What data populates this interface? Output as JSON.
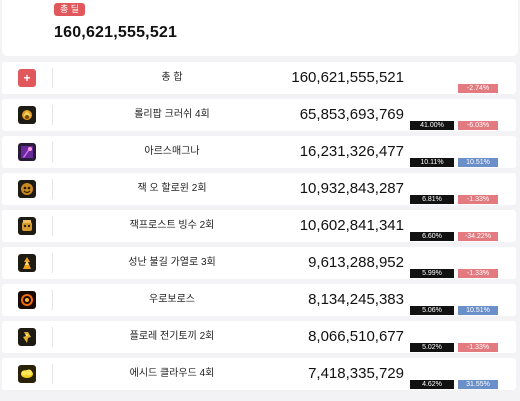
{
  "summary": {
    "badge": "총 딜",
    "value": "160,621,555,521"
  },
  "colors": {
    "accent": "#e0585b",
    "negative": "#e27a7f",
    "positive": "#6b8fc8"
  },
  "rows": [
    {
      "icon": "plus-icon",
      "name": "총 합",
      "amount": "160,621,555,521",
      "share": "",
      "delta": "-2.74%",
      "delta_sign": "neg"
    },
    {
      "icon": "skill-icon",
      "name": "롤리팝 크러쉬 4회",
      "amount": "65,853,693,769",
      "share": "41.00%",
      "delta": "-6.03%",
      "delta_sign": "neg"
    },
    {
      "icon": "skill-icon",
      "name": "아르스매그나",
      "amount": "16,231,326,477",
      "share": "10.11%",
      "delta": "10.51%",
      "delta_sign": "pos"
    },
    {
      "icon": "skill-icon",
      "name": "잭 오 할로윈 2회",
      "amount": "10,932,843,287",
      "share": "6.81%",
      "delta": "-1.33%",
      "delta_sign": "neg"
    },
    {
      "icon": "skill-icon",
      "name": "잭프로스트 빙수 2회",
      "amount": "10,602,841,341",
      "share": "6.60%",
      "delta": "-34.22%",
      "delta_sign": "neg"
    },
    {
      "icon": "skill-icon",
      "name": "성난 불길 가열로 3회",
      "amount": "9,613,288,952",
      "share": "5.99%",
      "delta": "-1.33%",
      "delta_sign": "neg"
    },
    {
      "icon": "skill-icon",
      "name": "우로보로스",
      "amount": "8,134,245,383",
      "share": "5.06%",
      "delta": "10.51%",
      "delta_sign": "pos"
    },
    {
      "icon": "skill-icon",
      "name": "플로레 전기토끼 2회",
      "amount": "8,066,510,677",
      "share": "5.02%",
      "delta": "-1.33%",
      "delta_sign": "neg"
    },
    {
      "icon": "skill-icon",
      "name": "에시드 클라우드 4회",
      "amount": "7,418,335,729",
      "share": "4.62%",
      "delta": "31.55%",
      "delta_sign": "pos"
    }
  ]
}
